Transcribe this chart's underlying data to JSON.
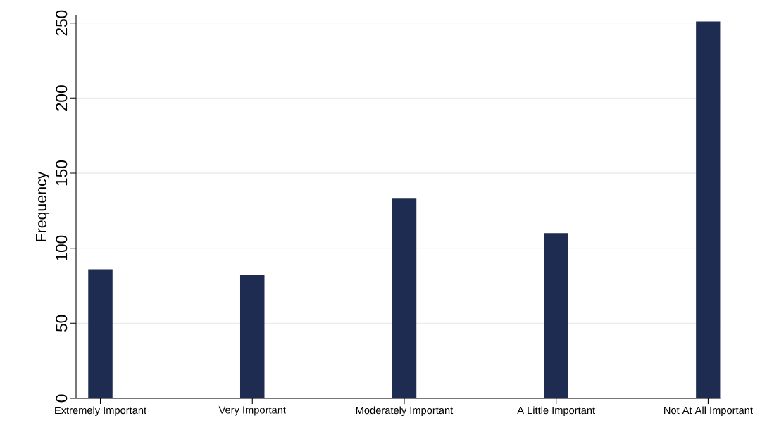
{
  "chart_data": {
    "type": "bar",
    "ylabel": "Frequency",
    "categories": [
      "Extremely Important",
      "Very Important",
      "Moderately Important",
      "A Little Important",
      "Not At All Important"
    ],
    "values": [
      86,
      82,
      133,
      110,
      251
    ],
    "color": "#1e2c52",
    "ylim": [
      0,
      255
    ],
    "yticks": [
      0,
      50,
      100,
      150,
      200,
      250
    ],
    "grid": "y"
  }
}
